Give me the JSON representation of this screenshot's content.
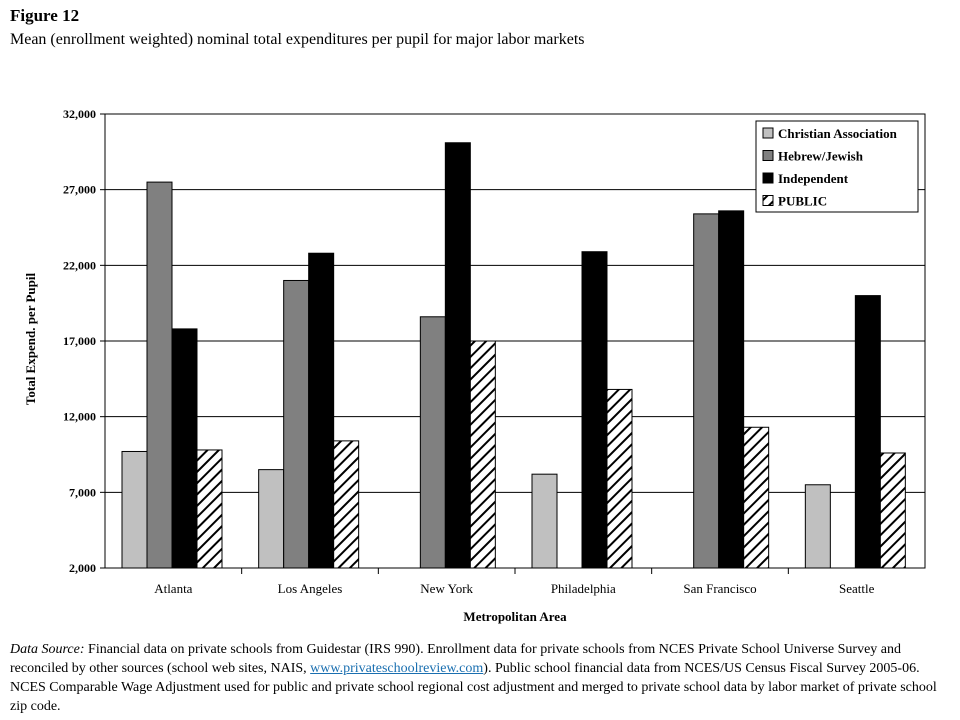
{
  "figure": {
    "label": "Figure 12",
    "title": "Mean (enrollment weighted) nominal total expenditures per pupil for major labor markets"
  },
  "chart_data": {
    "type": "bar",
    "title": "",
    "xlabel": "Metropolitan Area",
    "ylabel": "Total Expend. per Pupil",
    "ylim": [
      2000,
      32000
    ],
    "yticks": [
      2000,
      7000,
      12000,
      17000,
      22000,
      27000,
      32000
    ],
    "ytick_labels": [
      "2,000",
      "7,000",
      "12,000",
      "17,000",
      "22,000",
      "27,000",
      "32,000"
    ],
    "grid": "horizontal",
    "legend_position": "top-right",
    "categories": [
      "Atlanta",
      "Los Angeles",
      "New York",
      "Philadelphia",
      "San Francisco",
      "Seattle"
    ],
    "series": [
      {
        "name": "Christian Association",
        "color": "#c0c0c0",
        "pattern": "solid",
        "values": [
          9700,
          8500,
          null,
          8200,
          null,
          7500
        ]
      },
      {
        "name": "Hebrew/Jewish",
        "color": "#808080",
        "pattern": "solid",
        "values": [
          27500,
          21000,
          18600,
          null,
          25400,
          null
        ]
      },
      {
        "name": "Independent",
        "color": "#000000",
        "pattern": "solid",
        "values": [
          17800,
          22800,
          30100,
          22900,
          25600,
          20000
        ]
      },
      {
        "name": "PUBLIC",
        "color": "#000000",
        "pattern": "hatched",
        "values": [
          9800,
          10400,
          17000,
          13800,
          11300,
          9600
        ]
      }
    ]
  },
  "source": {
    "lead": "Data Source:",
    "text_before_link": " Financial data on private schools from Guidestar (IRS 990). Enrollment data for private schools from NCES Private School Universe Survey and reconciled by other sources (school web sites, NAIS, ",
    "link_text": "www.privateschoolreview.com",
    "text_after_link": "). Public school financial data from NCES/US Census Fiscal Survey 2005-06. NCES Comparable Wage Adjustment used for public and private school regional cost adjustment and merged to private school data by labor market of private school zip code."
  }
}
